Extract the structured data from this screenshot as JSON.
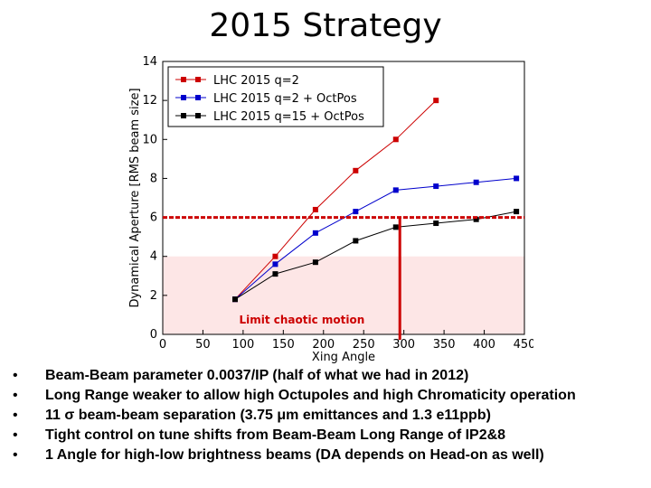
{
  "slide": {
    "title": "2015 Strategy",
    "bullets": [
      "Beam-Beam parameter 0.0037/IP (half of what we had in 2012)",
      "Long Range weaker to allow high Octupoles and high Chromaticity operation",
      "11 σ beam-beam separation (3.75 μm emittances and 1.3 e11ppb)",
      "Tight control on tune shifts from Beam-Beam Long Range of IP2&8",
      "1 Angle for high-low brightness beams (DA depends on Head-on as well)"
    ],
    "bullet_symbol": "•"
  },
  "chart_data": {
    "type": "line",
    "xlabel": "Xing Angle",
    "ylabel": "Dynamical Aperture [RMS beam size]",
    "xlim": [
      0,
      450
    ],
    "ylim": [
      0,
      14
    ],
    "xticks": [
      0,
      50,
      100,
      150,
      200,
      250,
      300,
      350,
      400,
      450
    ],
    "yticks": [
      0,
      2,
      4,
      6,
      8,
      10,
      12,
      14
    ],
    "legend_position": "top-left",
    "series": [
      {
        "name": "LHC 2015 q=2",
        "color": "#cc0000",
        "x": [
          90,
          140,
          190,
          240,
          290,
          340
        ],
        "y": [
          1.8,
          4.0,
          6.4,
          8.4,
          10.0,
          12.0
        ]
      },
      {
        "name": "LHC 2015 q=2 + OctPos",
        "color": "#0000cc",
        "x": [
          90,
          140,
          190,
          240,
          290,
          340,
          390,
          440
        ],
        "y": [
          1.8,
          3.6,
          5.2,
          6.3,
          7.4,
          7.6,
          7.8,
          8.0
        ]
      },
      {
        "name": "LHC 2015 q=15 + OctPos",
        "color": "#000000",
        "x": [
          90,
          140,
          190,
          240,
          290,
          340,
          390,
          440
        ],
        "y": [
          1.8,
          3.1,
          3.7,
          4.8,
          5.5,
          5.7,
          5.9,
          6.3
        ]
      }
    ],
    "annotations": {
      "shaded_region": {
        "label": "Limit chaotic motion",
        "y_min": 0,
        "y_max": 4,
        "fill": "#fde6e6",
        "label_color": "#cc0000"
      },
      "threshold_y": 6.0,
      "threshold_color": "#cc0000",
      "chosen_angle_x": 295
    }
  }
}
